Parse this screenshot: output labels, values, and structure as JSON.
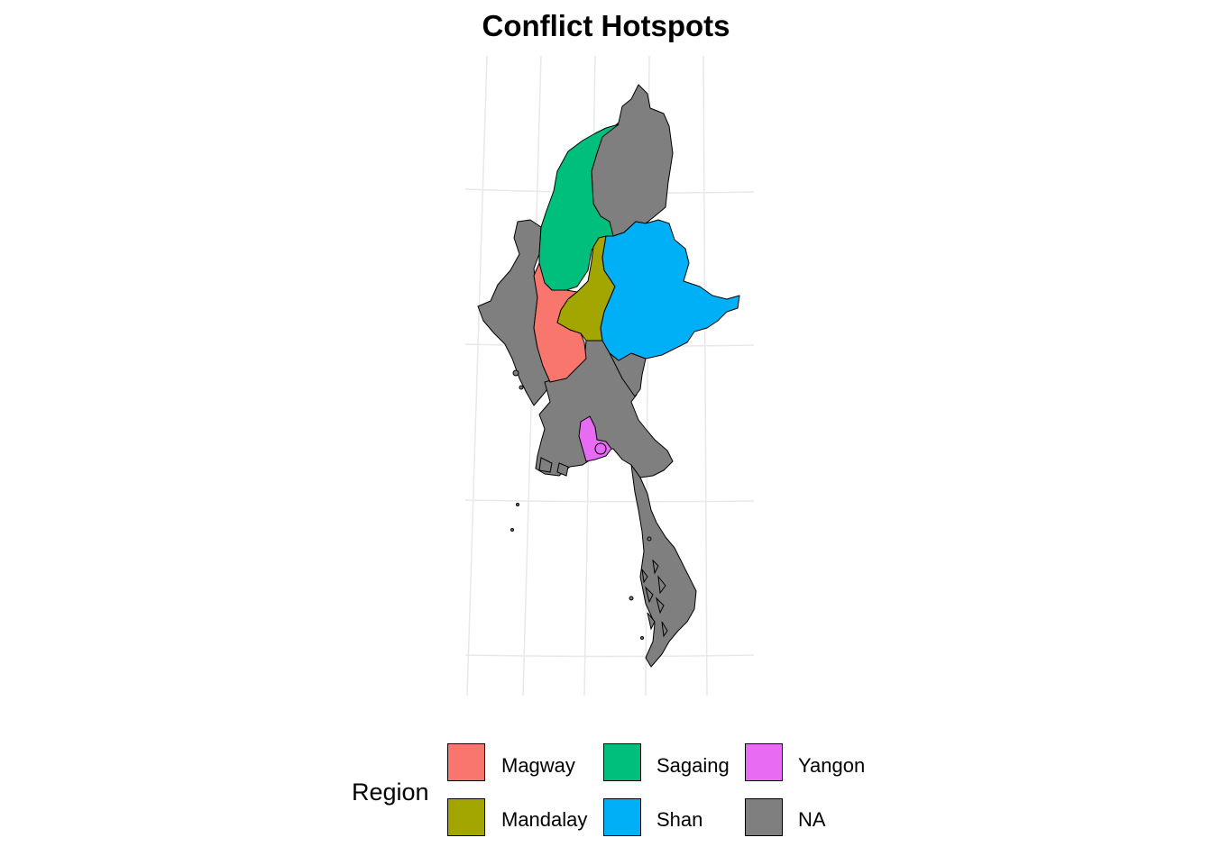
{
  "title": "Conflict Hotspots",
  "legend": {
    "title": "Region",
    "items": [
      {
        "label": "Magway",
        "color": "#F8766D"
      },
      {
        "label": "Mandalay",
        "color": "#A3A500"
      },
      {
        "label": "Sagaing",
        "color": "#00BF7D"
      },
      {
        "label": "Shan",
        "color": "#00B0F6"
      },
      {
        "label": "Yangon",
        "color": "#E76BF3"
      },
      {
        "label": "NA",
        "color": "#7F7F7F"
      }
    ]
  },
  "map": {
    "country": "Myanmar",
    "fill_variable": "Region",
    "highlighted_regions": [
      "Magway",
      "Mandalay",
      "Sagaing",
      "Shan",
      "Yangon"
    ],
    "graticule": true,
    "border_color": "#000000"
  }
}
